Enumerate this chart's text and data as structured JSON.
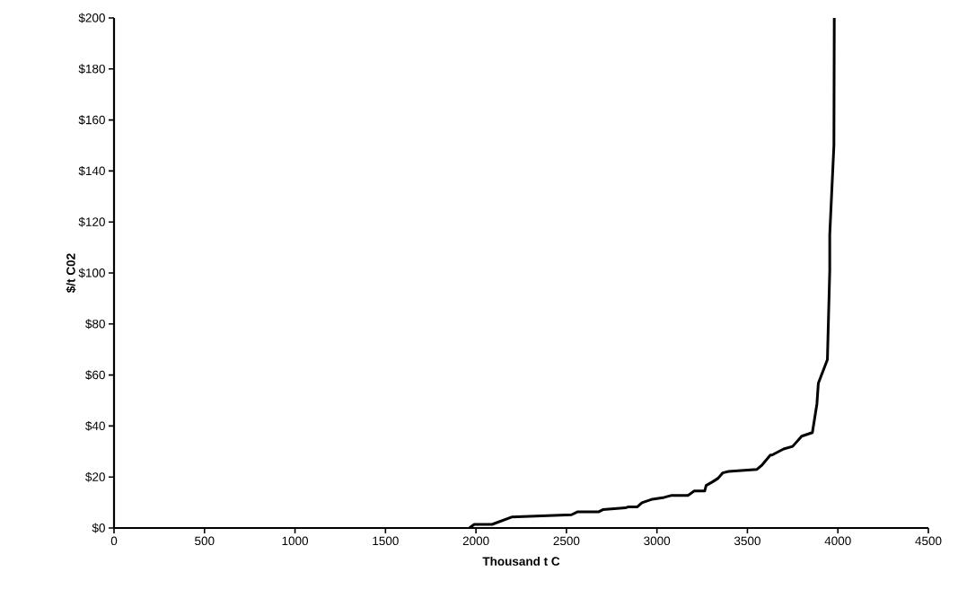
{
  "chart_data": {
    "type": "line",
    "xlabel": "Thousand t C",
    "ylabel": "$/t C02",
    "x": [
      1964,
      1990,
      2089,
      2197,
      2528,
      2560,
      2677,
      2701,
      2826,
      2843,
      2892,
      2917,
      2975,
      3040,
      3082,
      3173,
      3206,
      3264,
      3272,
      3305,
      3338,
      3363,
      3396,
      3553,
      3578,
      3627,
      3636,
      3700,
      3750,
      3800,
      3859,
      3884,
      3892,
      3942,
      3955,
      3955,
      3978,
      3980
    ],
    "series": [
      {
        "color": "#000000",
        "values": [
          0,
          1.4,
          1.4,
          4.3,
          5.2,
          6.3,
          6.3,
          7.2,
          7.9,
          8.3,
          8.3,
          9.9,
          11.3,
          12,
          12.8,
          12.8,
          14.5,
          14.5,
          16.7,
          18,
          19.5,
          21.6,
          22.2,
          23,
          24.5,
          28.6,
          28.6,
          31,
          32,
          36,
          37.4,
          48.6,
          56.8,
          66,
          101,
          115,
          150,
          200
        ]
      }
    ],
    "xlim": [
      0,
      4500
    ],
    "xticks": [
      0,
      500,
      1000,
      1500,
      2000,
      2500,
      3000,
      3500,
      4000,
      4500
    ],
    "ylim": [
      0,
      200
    ],
    "yticks": [
      {
        "value": 0,
        "label": "$0"
      },
      {
        "value": 20,
        "label": "$20"
      },
      {
        "value": 40,
        "label": "$40"
      },
      {
        "value": 60,
        "label": "$60"
      },
      {
        "value": 80,
        "label": "$80"
      },
      {
        "value": 100,
        "label": "$100"
      },
      {
        "value": 120,
        "label": "$120"
      },
      {
        "value": 140,
        "label": "$140"
      },
      {
        "value": 160,
        "label": "$160"
      },
      {
        "value": 180,
        "label": "$180"
      },
      {
        "value": 200,
        "label": "$200"
      }
    ],
    "grid": false,
    "marker": "none",
    "line_style": "solid"
  }
}
